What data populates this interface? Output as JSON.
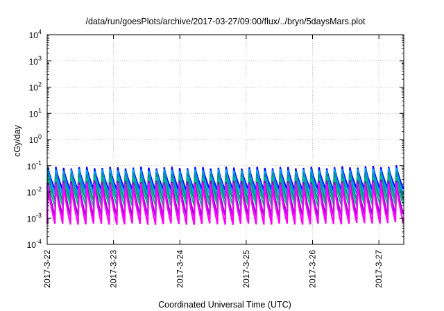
{
  "chart_data": {
    "type": "line",
    "title": "/data/run/goesPlots/archive/2017-03-27/09:00/flux/../bryn/5daysMars.plot",
    "xlabel": "Coordinated Universal Time (UTC)",
    "ylabel": "cGy/day",
    "y_scale": "log",
    "ylim": [
      0.0001,
      10000
    ],
    "y_ticks": [
      {
        "base": "10",
        "exp": "-4"
      },
      {
        "base": "10",
        "exp": "-3"
      },
      {
        "base": "10",
        "exp": "-2"
      },
      {
        "base": "10",
        "exp": "-1"
      },
      {
        "base": "10",
        "exp": "0"
      },
      {
        "base": "10",
        "exp": "1"
      },
      {
        "base": "10",
        "exp": "2"
      },
      {
        "base": "10",
        "exp": "3"
      },
      {
        "base": "10",
        "exp": "4"
      }
    ],
    "x_ticks": [
      "2017-3-22",
      "2017-3-23",
      "2017-3-24",
      "2017-3-25",
      "2017-3-26",
      "2017-3-27"
    ],
    "xlim": [
      "2017-03-22T00:00",
      "2017-03-27T09:00"
    ],
    "grid": true,
    "pattern": {
      "description": "sawtooth oscillation, sharp rise then decay",
      "period_hours": 2.8,
      "start": "2017-03-22T00:00"
    },
    "series": [
      {
        "color": "#0000ff",
        "peak": 0.085,
        "trough": 0.012
      },
      {
        "color": "#00a0ff",
        "peak": 0.07,
        "trough": 0.008
      },
      {
        "color": "#009090",
        "peak": 0.05,
        "trough": 0.005
      },
      {
        "color": "#00c080",
        "peak": 0.035,
        "trough": 0.003
      },
      {
        "color": "#9400d3",
        "peak": 0.025,
        "trough": 0.0012
      },
      {
        "color": "#ff00ff",
        "peak": 0.02,
        "trough": 0.0006
      }
    ]
  }
}
